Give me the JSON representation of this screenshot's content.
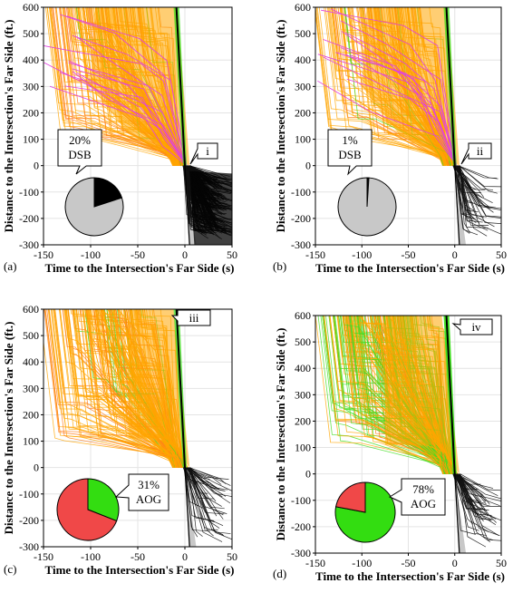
{
  "chart_data": [
    {
      "panel": "(a)",
      "type": "line",
      "xlabel": "Time to the Intersection's Far Side (s)",
      "ylabel": "Distance to the Intersection's Far Side (ft.)",
      "xlim": [
        -150,
        50
      ],
      "ylim": [
        -300,
        600
      ],
      "xticks": [
        -150,
        -100,
        -50,
        0,
        50
      ],
      "yticks": [
        -300,
        -200,
        -100,
        0,
        100,
        200,
        300,
        400,
        500,
        600
      ],
      "grid": true,
      "callout": "i",
      "pie": {
        "label_lines": [
          "20%",
          "DSB"
        ],
        "slices": [
          {
            "name": "DSB",
            "value": 20,
            "color": "#000000"
          },
          {
            "name": "other",
            "value": 80,
            "color": "#c8c8c8"
          }
        ]
      }
    },
    {
      "panel": "(b)",
      "type": "line",
      "xlabel": "Time to the Intersection's Far Side (s)",
      "ylabel": "Distance to the Intersection's Far Side (ft.)",
      "xlim": [
        -150,
        50
      ],
      "ylim": [
        -300,
        600
      ],
      "xticks": [
        -150,
        -100,
        -50,
        0,
        50
      ],
      "yticks": [
        -300,
        -200,
        -100,
        0,
        100,
        200,
        300,
        400,
        500,
        600
      ],
      "grid": true,
      "callout": "ii",
      "pie": {
        "label_lines": [
          "1%",
          "DSB"
        ],
        "slices": [
          {
            "name": "DSB",
            "value": 1,
            "color": "#000000"
          },
          {
            "name": "other",
            "value": 99,
            "color": "#c8c8c8"
          }
        ]
      }
    },
    {
      "panel": "(c)",
      "type": "line",
      "xlabel": "Time to the Intersection's Far Side (s)",
      "ylabel": "Distance to the Intersection's Far Side (ft.)",
      "xlim": [
        -150,
        50
      ],
      "ylim": [
        -300,
        600
      ],
      "xticks": [
        -150,
        -100,
        -50,
        0,
        50
      ],
      "yticks": [
        -300,
        -200,
        -100,
        0,
        100,
        200,
        300,
        400,
        500,
        600
      ],
      "grid": true,
      "callout": "iii",
      "pie": {
        "label_lines": [
          "31%",
          "AOG"
        ],
        "slices": [
          {
            "name": "AOG",
            "value": 31,
            "color": "#33dd11"
          },
          {
            "name": "other",
            "value": 69,
            "color": "#f04848"
          }
        ]
      }
    },
    {
      "panel": "(d)",
      "type": "line",
      "xlabel": "Time to the Intersection's Far Side (s)",
      "ylabel": "Distance to the Intersection's Far Side (ft.)",
      "xlim": [
        -150,
        50
      ],
      "ylim": [
        -300,
        600
      ],
      "xticks": [
        -150,
        -100,
        -50,
        0,
        50
      ],
      "yticks": [
        -300,
        -200,
        -100,
        0,
        100,
        200,
        300,
        400,
        500,
        600
      ],
      "grid": true,
      "callout": "iv",
      "pie": {
        "label_lines": [
          "78%",
          "AOG"
        ],
        "slices": [
          {
            "name": "AOG",
            "value": 78,
            "color": "#33dd11"
          },
          {
            "name": "other",
            "value": 22,
            "color": "#f04848"
          }
        ]
      }
    }
  ]
}
